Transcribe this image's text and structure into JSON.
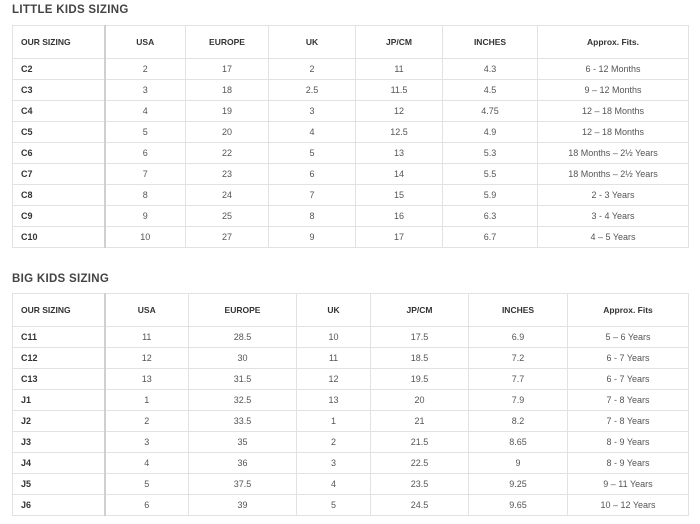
{
  "table1": {
    "title": "LITTLE KIDS SIZING",
    "header": [
      "OUR SIZING",
      "USA",
      "EUROPE",
      "UK",
      "JP/CM",
      "INCHES",
      "Approx. Fits."
    ],
    "rows": [
      [
        "C2",
        "2",
        "17",
        "2",
        "11",
        "4.3",
        "6 - 12 Months"
      ],
      [
        "C3",
        "3",
        "18",
        "2.5",
        "11.5",
        "4.5",
        "9 – 12 Months"
      ],
      [
        "C4",
        "4",
        "19",
        "3",
        "12",
        "4.75",
        "12 – 18 Months"
      ],
      [
        "C5",
        "5",
        "20",
        "4",
        "12.5",
        "4.9",
        "12 – 18 Months"
      ],
      [
        "C6",
        "6",
        "22",
        "5",
        "13",
        "5.3",
        "18 Months – 2½ Years"
      ],
      [
        "C7",
        "7",
        "23",
        "6",
        "14",
        "5.5",
        "18 Months – 2½ Years"
      ],
      [
        "C8",
        "8",
        "24",
        "7",
        "15",
        "5.9",
        "2 - 3 Years"
      ],
      [
        "C9",
        "9",
        "25",
        "8",
        "16",
        "6.3",
        "3 - 4 Years"
      ],
      [
        "C10",
        "10",
        "27",
        "9",
        "17",
        "6.7",
        "4 – 5 Years"
      ]
    ]
  },
  "table2": {
    "title": "BIG KIDS SIZING",
    "header": [
      "OUR SIZING",
      "USA",
      "EUROPE",
      "UK",
      "JP/CM",
      "INCHES",
      "Approx. Fits"
    ],
    "rows": [
      [
        "C11",
        "11",
        "28.5",
        "10",
        "17.5",
        "6.9",
        "5 – 6 Years"
      ],
      [
        "C12",
        "12",
        "30",
        "11",
        "18.5",
        "7.2",
        "6 - 7 Years"
      ],
      [
        "C13",
        "13",
        "31.5",
        "12",
        "19.5",
        "7.7",
        "6 - 7 Years"
      ],
      [
        "J1",
        "1",
        "32.5",
        "13",
        "20",
        "7.9",
        "7 - 8 Years"
      ],
      [
        "J2",
        "2",
        "33.5",
        "1",
        "21",
        "8.2",
        "7 - 8 Years"
      ],
      [
        "J3",
        "3",
        "35",
        "2",
        "21.5",
        "8.65",
        "8 - 9 Years"
      ],
      [
        "J4",
        "4",
        "36",
        "3",
        "22.5",
        "9",
        "8 - 9 Years"
      ],
      [
        "J5",
        "5",
        "37.5",
        "4",
        "23.5",
        "9.25",
        "9 – 11 Years"
      ],
      [
        "J6",
        "6",
        "39",
        "5",
        "24.5",
        "9.65",
        "10 – 12 Years"
      ]
    ]
  }
}
